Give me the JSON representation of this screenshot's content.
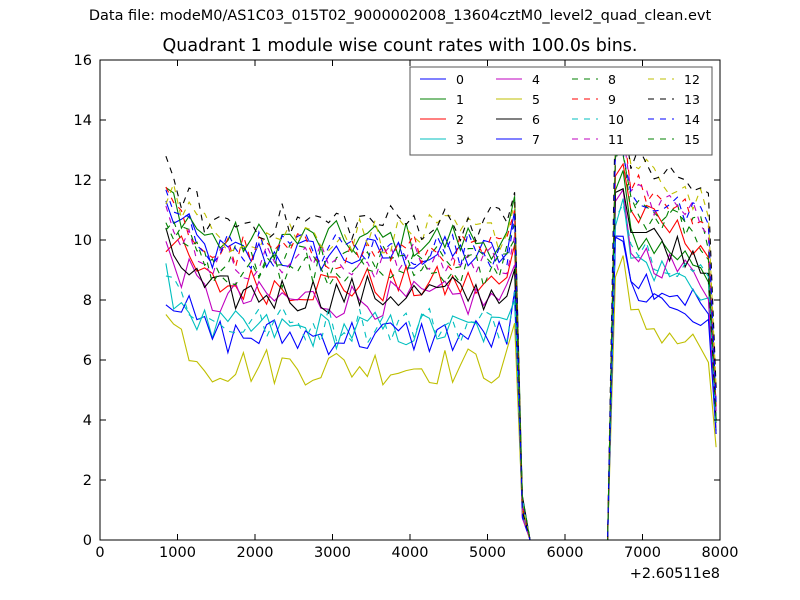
{
  "header": {
    "suptitle": "Data file: modeM0/AS1C03_015T02_9000002008_13604cztM0_level2_quad_clean.evt",
    "title": "Quadrant 1 module wise count rates with 100.0s bins."
  },
  "chart_data": {
    "type": "line",
    "title": "Quadrant 1 module wise count rates with 100.0s bins.",
    "xlabel": "",
    "ylabel": "",
    "x_offset_label": "+2.60511e8",
    "xlim": [
      0,
      8000
    ],
    "ylim": [
      0,
      16
    ],
    "xticks": [
      0,
      1000,
      2000,
      3000,
      4000,
      5000,
      6000,
      7000,
      8000
    ],
    "yticks": [
      0,
      2,
      4,
      6,
      8,
      10,
      12,
      14,
      16
    ],
    "grid": false,
    "legend_position": "top-right",
    "legend_columns": 4,
    "x_range_shown": [
      850,
      7950
    ],
    "bin_width": 100,
    "x_breakpoints": [
      5350,
      5450,
      5550,
      6550,
      6650,
      6750
    ],
    "series": [
      {
        "name": "0",
        "color": "#0000ff",
        "dash": "solid",
        "active": 9.5,
        "after": 9.0,
        "end": 3.8
      },
      {
        "name": "1",
        "color": "#008000",
        "dash": "solid",
        "active": 10.0,
        "after": 10.3,
        "end": 4.0
      },
      {
        "name": "2",
        "color": "#ff0000",
        "dash": "solid",
        "active": 8.5,
        "after": 11.0,
        "end": 4.2
      },
      {
        "name": "3",
        "color": "#00bfbf",
        "dash": "solid",
        "active": 7.0,
        "after": 9.5,
        "end": 3.6
      },
      {
        "name": "4",
        "color": "#bf00bf",
        "dash": "solid",
        "active": 8.0,
        "after": 9.8,
        "end": 3.9
      },
      {
        "name": "5",
        "color": "#bfbf00",
        "dash": "solid",
        "active": 5.8,
        "after": 7.5,
        "end": 2.9
      },
      {
        "name": "6",
        "color": "#000000",
        "dash": "solid",
        "active": 8.2,
        "after": 10.5,
        "end": 4.1
      },
      {
        "name": "7",
        "color": "#0000ff",
        "dash": "solid",
        "active": 6.8,
        "after": 8.5,
        "end": 3.4
      },
      {
        "name": "8",
        "color": "#008000",
        "dash": "dashed",
        "active": 9.2,
        "after": 11.5,
        "end": 4.4
      },
      {
        "name": "9",
        "color": "#ff0000",
        "dash": "dashed",
        "active": 9.6,
        "after": 12.0,
        "end": 4.6
      },
      {
        "name": "10",
        "color": "#00bfbf",
        "dash": "dashed",
        "active": 7.2,
        "after": 10.0,
        "end": 3.7
      },
      {
        "name": "11",
        "color": "#bf00bf",
        "dash": "dashed",
        "active": 9.3,
        "after": 11.8,
        "end": 4.5
      },
      {
        "name": "12",
        "color": "#bfbf00",
        "dash": "dashed",
        "active": 10.2,
        "after": 12.5,
        "end": 4.8
      },
      {
        "name": "13",
        "color": "#000000",
        "dash": "dashed",
        "active": 10.6,
        "after": 12.8,
        "end": 5.0
      },
      {
        "name": "14",
        "color": "#0000ff",
        "dash": "dashed",
        "active": 9.7,
        "after": 11.7,
        "end": 4.6
      },
      {
        "name": "15",
        "color": "#008000",
        "dash": "dashed",
        "active": 9.0,
        "after": 11.2,
        "end": 4.3
      }
    ]
  }
}
